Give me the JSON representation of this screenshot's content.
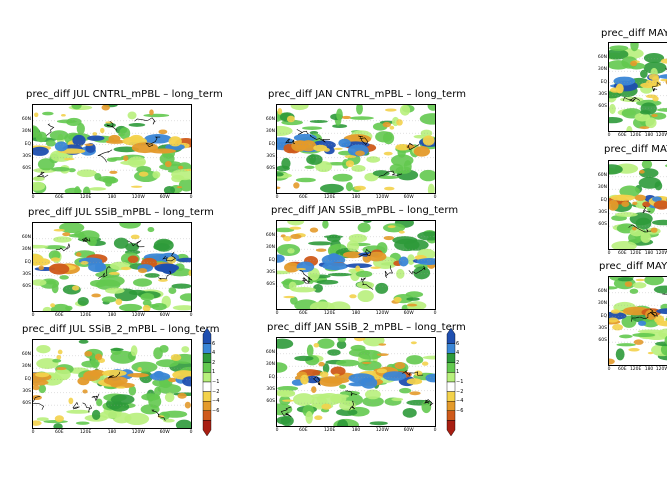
{
  "panels": [
    {
      "id": "jul_cntrl",
      "title": "prec_diff  JUL  CNTRL_mPBL  –  long_term"
    },
    {
      "id": "jul_ssib",
      "title": "prec_diff  JUL  SSiB_mPBL  –  long_term"
    },
    {
      "id": "jul_ssib2",
      "title": "prec_diff  JUL  SSiB_2_mPBL  –  long_term"
    },
    {
      "id": "jan_cntrl",
      "title": "prec_diff  JAN  CNTRL_mPBL  –  long_term"
    },
    {
      "id": "jan_ssib",
      "title": "prec_diff  JAN  SSiB_mPBL  –  long_term"
    },
    {
      "id": "jan_ssib2",
      "title": "prec_diff  JAN  SSiB_2_mPBL  –  long_term"
    },
    {
      "id": "may_cntrl",
      "title": "prec_diff  MAY  C"
    },
    {
      "id": "may_ssib",
      "title": "prec_diff  MAY"
    },
    {
      "id": "may_ssib2",
      "title": "prec_diff  MAY  S"
    }
  ],
  "lat_ticks": [
    "60N",
    "30N",
    "EQ",
    "30S",
    "60S"
  ],
  "lon_ticks": [
    "0",
    "60E",
    "120E",
    "180",
    "120W",
    "60W",
    "0"
  ],
  "colorbar": {
    "labels": [
      "6",
      "4",
      "2",
      "1",
      "−1",
      "−2",
      "−4",
      "−6"
    ],
    "colors": [
      "#1f4fb0",
      "#3a86d6",
      "#2e9a3a",
      "#63c94f",
      "#b8f07c",
      "#ffffff",
      "#f3d24b",
      "#e49a2a",
      "#cf5a1a",
      "#a81e12"
    ]
  }
}
